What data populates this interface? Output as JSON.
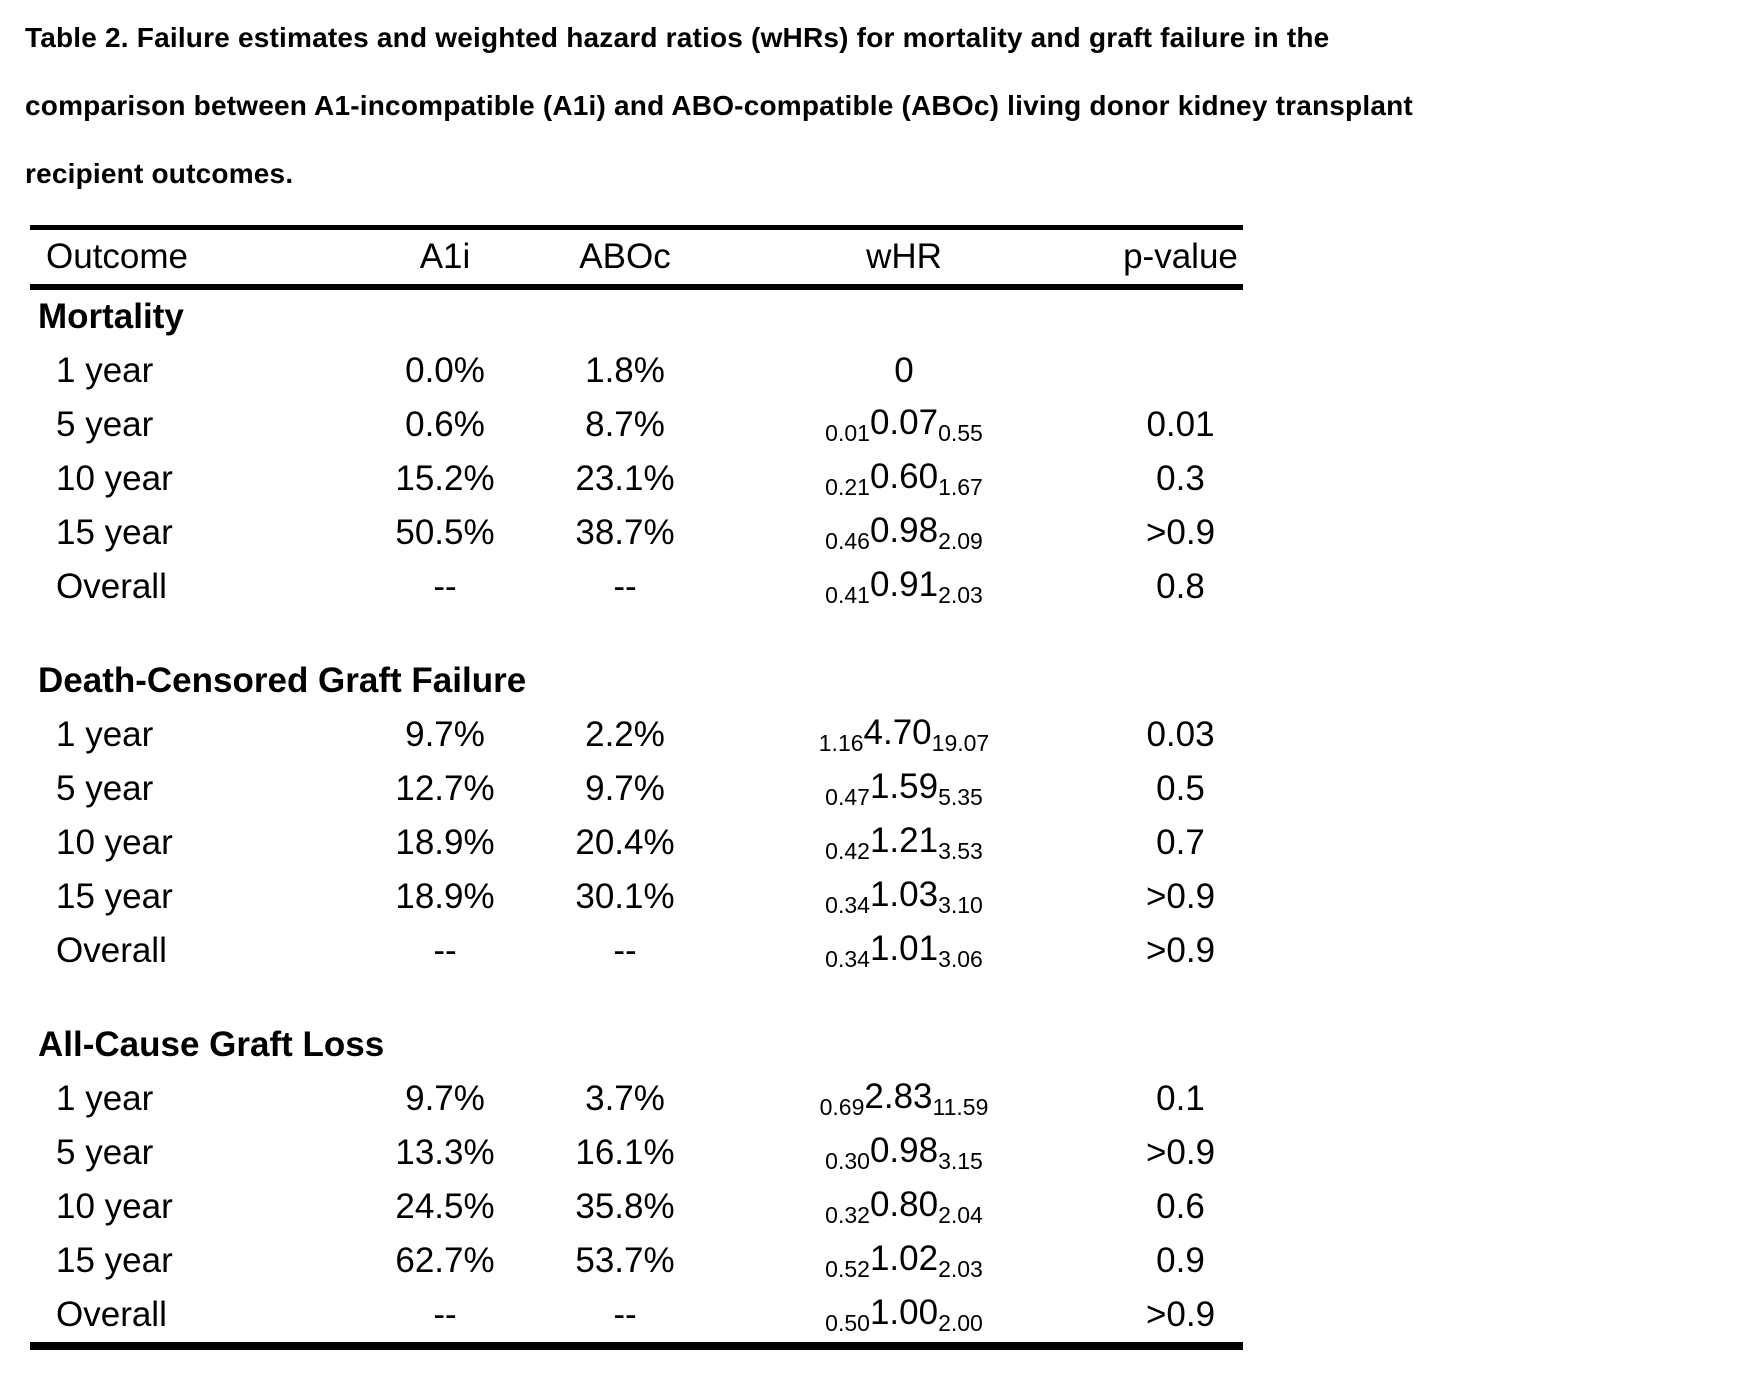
{
  "title": {
    "lines": [
      "Table 2. Failure estimates and weighted hazard ratios (wHRs) for mortality and graft failure in the",
      "comparison between A1-incompatible (A1i) and ABO-compatible (ABOc) living donor kidney transplant",
      "recipient outcomes."
    ]
  },
  "table": {
    "columns": [
      "Outcome",
      "A1i",
      "ABOc",
      "wHR",
      "p-value"
    ],
    "sections": [
      {
        "label": "Mortality",
        "rows": [
          {
            "outcome": "1 year",
            "a1i": "0.0%",
            "aboc": "1.8%",
            "whr": {
              "lower": "",
              "est": "0",
              "upper": ""
            },
            "p": ""
          },
          {
            "outcome": "5 year",
            "a1i": "0.6%",
            "aboc": "8.7%",
            "whr": {
              "lower": "0.01",
              "est": "0.07",
              "upper": "0.55"
            },
            "p": "0.01"
          },
          {
            "outcome": "10 year",
            "a1i": "15.2%",
            "aboc": "23.1%",
            "whr": {
              "lower": "0.21",
              "est": "0.60",
              "upper": "1.67"
            },
            "p": "0.3"
          },
          {
            "outcome": "15 year",
            "a1i": "50.5%",
            "aboc": "38.7%",
            "whr": {
              "lower": "0.46",
              "est": "0.98",
              "upper": "2.09"
            },
            "p": ">0.9"
          },
          {
            "outcome": "Overall",
            "a1i": "--",
            "aboc": "--",
            "whr": {
              "lower": "0.41",
              "est": "0.91",
              "upper": "2.03"
            },
            "p": "0.8"
          }
        ]
      },
      {
        "label": "Death-Censored Graft Failure",
        "rows": [
          {
            "outcome": "1 year",
            "a1i": "9.7%",
            "aboc": "2.2%",
            "whr": {
              "lower": "1.16",
              "est": "4.70",
              "upper": "19.07"
            },
            "p": "0.03"
          },
          {
            "outcome": "5 year",
            "a1i": "12.7%",
            "aboc": "9.7%",
            "whr": {
              "lower": "0.47",
              "est": "1.59",
              "upper": "5.35"
            },
            "p": "0.5"
          },
          {
            "outcome": "10 year",
            "a1i": "18.9%",
            "aboc": "20.4%",
            "whr": {
              "lower": "0.42",
              "est": "1.21",
              "upper": "3.53"
            },
            "p": "0.7"
          },
          {
            "outcome": "15 year",
            "a1i": "18.9%",
            "aboc": "30.1%",
            "whr": {
              "lower": "0.34",
              "est": "1.03",
              "upper": "3.10"
            },
            "p": ">0.9"
          },
          {
            "outcome": "Overall",
            "a1i": "--",
            "aboc": "--",
            "whr": {
              "lower": "0.34",
              "est": "1.01",
              "upper": "3.06"
            },
            "p": ">0.9"
          }
        ]
      },
      {
        "label": "All-Cause Graft Loss",
        "rows": [
          {
            "outcome": "1 year",
            "a1i": "9.7%",
            "aboc": "3.7%",
            "whr": {
              "lower": "0.69",
              "est": "2.83",
              "upper": "11.59"
            },
            "p": "0.1"
          },
          {
            "outcome": "5 year",
            "a1i": "13.3%",
            "aboc": "16.1%",
            "whr": {
              "lower": "0.30",
              "est": "0.98",
              "upper": "3.15"
            },
            "p": ">0.9"
          },
          {
            "outcome": "10 year",
            "a1i": "24.5%",
            "aboc": "35.8%",
            "whr": {
              "lower": "0.32",
              "est": "0.80",
              "upper": "2.04"
            },
            "p": "0.6"
          },
          {
            "outcome": "15 year",
            "a1i": "62.7%",
            "aboc": "53.7%",
            "whr": {
              "lower": "0.52",
              "est": "1.02",
              "upper": "2.03"
            },
            "p": "0.9"
          },
          {
            "outcome": "Overall",
            "a1i": "--",
            "aboc": "--",
            "whr": {
              "lower": "0.50",
              "est": "1.00",
              "upper": "2.00"
            },
            "p": ">0.9"
          }
        ]
      }
    ]
  }
}
